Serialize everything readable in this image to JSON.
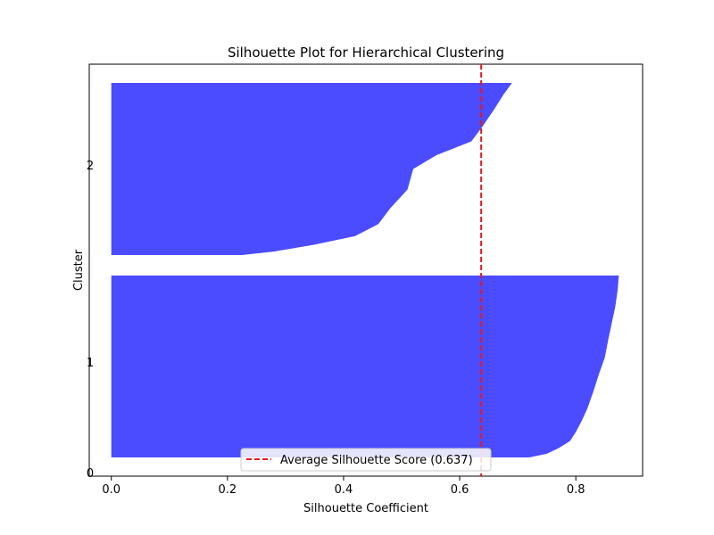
{
  "chart_data": {
    "type": "area",
    "title": "Silhouette Plot for Hierarchical Clustering",
    "xlabel": "Silhouette Coefficient",
    "ylabel": "Cluster",
    "xlim": [
      -0.038,
      0.915
    ],
    "x_ticks": [
      "0.0",
      "0.2",
      "0.4",
      "0.6",
      "0.8"
    ],
    "y_ticks": [
      "0",
      "1",
      "2"
    ],
    "grid": false,
    "legend_position": "lower center",
    "fill_color": "#4b4bff",
    "average_line_color": "#e41a1c",
    "average_score": 0.637,
    "legend_label": "Average Silhouette Score (0.637)",
    "clusters": [
      {
        "label": "1",
        "profile_bottom_to_top": [
          [
            0.72,
            0.0
          ],
          [
            0.75,
            0.02
          ],
          [
            0.77,
            0.05
          ],
          [
            0.79,
            0.09
          ],
          [
            0.8,
            0.14
          ],
          [
            0.81,
            0.2
          ],
          [
            0.82,
            0.27
          ],
          [
            0.83,
            0.36
          ],
          [
            0.84,
            0.46
          ],
          [
            0.85,
            0.55
          ],
          [
            0.856,
            0.65
          ],
          [
            0.862,
            0.74
          ],
          [
            0.868,
            0.83
          ],
          [
            0.872,
            0.92
          ],
          [
            0.874,
            1.0
          ]
        ]
      },
      {
        "label": "2",
        "profile_bottom_to_top": [
          [
            0.225,
            0.0
          ],
          [
            0.28,
            0.02
          ],
          [
            0.35,
            0.06
          ],
          [
            0.42,
            0.11
          ],
          [
            0.46,
            0.18
          ],
          [
            0.48,
            0.27
          ],
          [
            0.51,
            0.38
          ],
          [
            0.52,
            0.5
          ],
          [
            0.56,
            0.58
          ],
          [
            0.62,
            0.66
          ],
          [
            0.64,
            0.75
          ],
          [
            0.66,
            0.85
          ],
          [
            0.675,
            0.93
          ],
          [
            0.69,
            1.0
          ]
        ]
      }
    ]
  }
}
